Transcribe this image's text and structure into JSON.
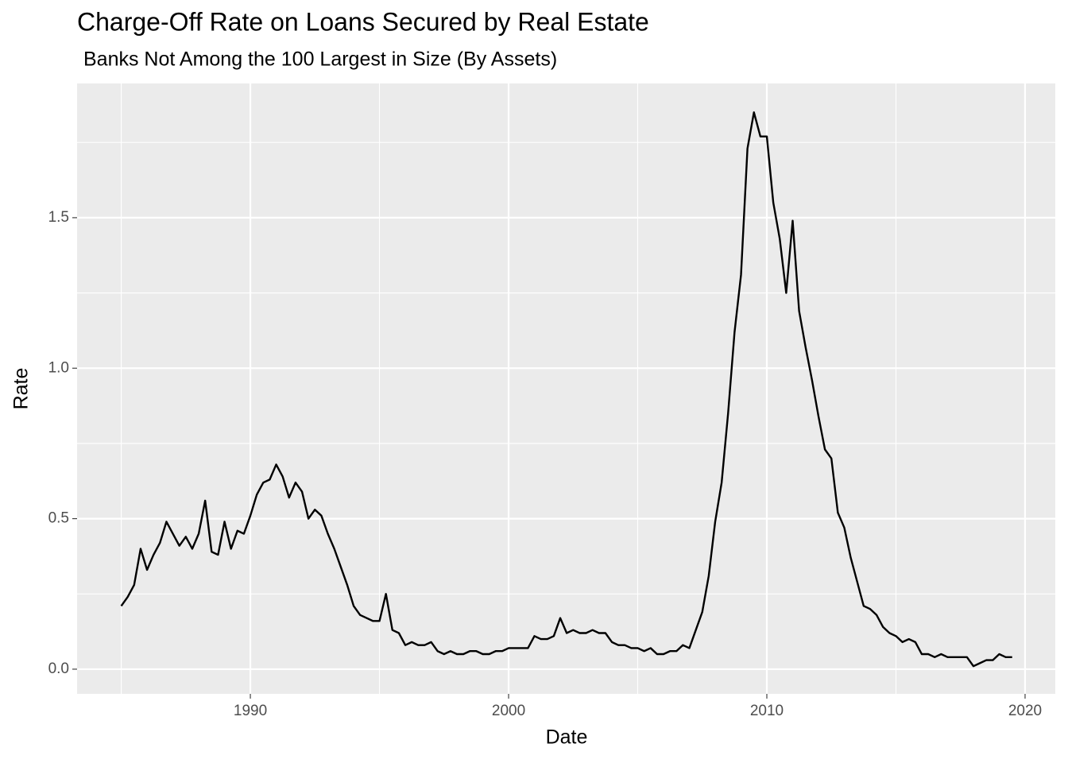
{
  "chart_data": {
    "type": "line",
    "title": "Charge-Off Rate on Loans Secured by Real Estate",
    "subtitle": "Banks Not Among the 100 Largest in Size (By Assets)",
    "x_label": "Date",
    "y_label": "Rate",
    "x": [
      1985,
      1985.25,
      1985.5,
      1985.75,
      1986,
      1986.25,
      1986.5,
      1986.75,
      1987,
      1987.25,
      1987.5,
      1987.75,
      1988,
      1988.25,
      1988.5,
      1988.75,
      1989,
      1989.25,
      1989.5,
      1989.75,
      1990,
      1990.25,
      1990.5,
      1990.75,
      1991,
      1991.25,
      1991.5,
      1991.75,
      1992,
      1992.25,
      1992.5,
      1992.75,
      1993,
      1993.25,
      1993.5,
      1993.75,
      1994,
      1994.25,
      1994.5,
      1994.75,
      1995,
      1995.25,
      1995.5,
      1995.75,
      1996,
      1996.25,
      1996.5,
      1996.75,
      1997,
      1997.25,
      1997.5,
      1997.75,
      1998,
      1998.25,
      1998.5,
      1998.75,
      1999,
      1999.25,
      1999.5,
      1999.75,
      2000,
      2000.25,
      2000.5,
      2000.75,
      2001,
      2001.25,
      2001.5,
      2001.75,
      2002,
      2002.25,
      2002.5,
      2002.75,
      2003,
      2003.25,
      2003.5,
      2003.75,
      2004,
      2004.25,
      2004.5,
      2004.75,
      2005,
      2005.25,
      2005.5,
      2005.75,
      2006,
      2006.25,
      2006.5,
      2006.75,
      2007,
      2007.25,
      2007.5,
      2007.75,
      2008,
      2008.25,
      2008.5,
      2008.75,
      2009,
      2009.25,
      2009.5,
      2009.75,
      2010,
      2010.25,
      2010.5,
      2010.75,
      2011,
      2011.25,
      2011.5,
      2011.75,
      2012,
      2012.25,
      2012.5,
      2012.75,
      2013,
      2013.25,
      2013.5,
      2013.75,
      2014,
      2014.25,
      2014.5,
      2014.75,
      2015,
      2015.25,
      2015.5,
      2015.75,
      2016,
      2016.25,
      2016.5,
      2016.75,
      2017,
      2017.25,
      2017.5,
      2017.75,
      2018,
      2018.25,
      2018.5,
      2018.75,
      2019,
      2019.25,
      2019.5
    ],
    "series": [
      {
        "name": "Rate",
        "color": "#000000",
        "values": [
          0.21,
          0.24,
          0.28,
          0.4,
          0.33,
          0.38,
          0.42,
          0.49,
          0.45,
          0.41,
          0.44,
          0.4,
          0.45,
          0.56,
          0.39,
          0.38,
          0.49,
          0.4,
          0.46,
          0.45,
          0.51,
          0.58,
          0.62,
          0.63,
          0.68,
          0.64,
          0.57,
          0.62,
          0.59,
          0.5,
          0.53,
          0.51,
          0.45,
          0.4,
          0.34,
          0.28,
          0.21,
          0.18,
          0.17,
          0.16,
          0.16,
          0.25,
          0.13,
          0.12,
          0.08,
          0.09,
          0.08,
          0.08,
          0.09,
          0.06,
          0.05,
          0.06,
          0.05,
          0.05,
          0.06,
          0.06,
          0.05,
          0.05,
          0.06,
          0.06,
          0.07,
          0.07,
          0.07,
          0.07,
          0.11,
          0.1,
          0.1,
          0.11,
          0.17,
          0.12,
          0.13,
          0.12,
          0.12,
          0.13,
          0.12,
          0.12,
          0.09,
          0.08,
          0.08,
          0.07,
          0.07,
          0.06,
          0.07,
          0.05,
          0.05,
          0.06,
          0.06,
          0.08,
          0.07,
          0.13,
          0.19,
          0.31,
          0.49,
          0.62,
          0.85,
          1.12,
          1.31,
          1.73,
          1.85,
          1.77,
          1.77,
          1.55,
          1.43,
          1.25,
          1.49,
          1.19,
          1.07,
          0.96,
          0.84,
          0.73,
          0.7,
          0.52,
          0.47,
          0.37,
          0.29,
          0.21,
          0.2,
          0.18,
          0.14,
          0.12,
          0.11,
          0.09,
          0.1,
          0.09,
          0.05,
          0.05,
          0.04,
          0.05,
          0.04,
          0.04,
          0.04,
          0.04,
          0.01,
          0.02,
          0.03,
          0.03,
          0.05,
          0.04,
          0.04
        ]
      }
    ],
    "xlim": [
      1983.29,
      2021.17
    ],
    "xticks": [
      1990,
      2000,
      2010,
      2020
    ],
    "ylim": [
      -0.082,
      1.946
    ],
    "yticks": [
      {
        "value": 0,
        "label": "0.0"
      },
      {
        "value": 0.5,
        "label": "0.5"
      },
      {
        "value": 1,
        "label": "1.0"
      },
      {
        "value": 1.5,
        "label": "1.5"
      }
    ],
    "grid": true
  }
}
